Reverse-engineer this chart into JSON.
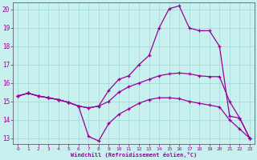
{
  "xlabel": "Windchill (Refroidissement éolien,°C)",
  "background_color": "#c8f0ee",
  "grid_color": "#9fd8d8",
  "line_color": "#990099",
  "xlim": [
    -0.5,
    23.5
  ],
  "ylim": [
    12.7,
    20.4
  ],
  "xticks": [
    0,
    1,
    2,
    3,
    4,
    5,
    6,
    7,
    8,
    9,
    10,
    11,
    12,
    13,
    14,
    15,
    16,
    17,
    18,
    19,
    20,
    21,
    22,
    23
  ],
  "yticks": [
    13,
    14,
    15,
    16,
    17,
    18,
    19,
    20
  ],
  "line1_x": [
    0,
    1,
    2,
    3,
    4,
    5,
    6,
    7,
    8,
    9,
    10,
    11,
    12,
    13,
    14,
    15,
    16,
    17,
    18,
    19,
    20,
    21,
    22,
    23
  ],
  "line1_y": [
    15.3,
    15.45,
    15.3,
    15.2,
    15.1,
    14.95,
    14.75,
    14.65,
    14.75,
    15.6,
    16.2,
    16.4,
    17.0,
    17.5,
    19.0,
    20.05,
    20.2,
    19.0,
    18.85,
    18.85,
    18.0,
    14.2,
    14.1,
    13.0
  ],
  "line2_x": [
    0,
    1,
    2,
    3,
    4,
    5,
    6,
    7,
    8,
    9,
    10,
    11,
    12,
    13,
    14,
    15,
    16,
    17,
    18,
    19,
    20,
    21,
    22,
    23
  ],
  "line2_y": [
    15.3,
    15.45,
    15.3,
    15.2,
    15.1,
    14.95,
    14.75,
    14.65,
    14.75,
    15.0,
    15.5,
    15.8,
    16.0,
    16.2,
    16.4,
    16.5,
    16.55,
    16.5,
    16.4,
    16.35,
    16.35,
    15.0,
    14.1,
    13.0
  ],
  "line3_x": [
    0,
    1,
    2,
    3,
    4,
    5,
    6,
    7,
    8,
    9,
    10,
    11,
    12,
    13,
    14,
    15,
    16,
    17,
    18,
    19,
    20,
    21,
    22,
    23
  ],
  "line3_y": [
    15.3,
    15.45,
    15.3,
    15.2,
    15.1,
    14.95,
    14.75,
    13.1,
    12.85,
    13.8,
    14.3,
    14.6,
    14.9,
    15.1,
    15.2,
    15.2,
    15.15,
    15.0,
    14.9,
    14.8,
    14.7,
    14.0,
    13.5,
    13.0
  ]
}
